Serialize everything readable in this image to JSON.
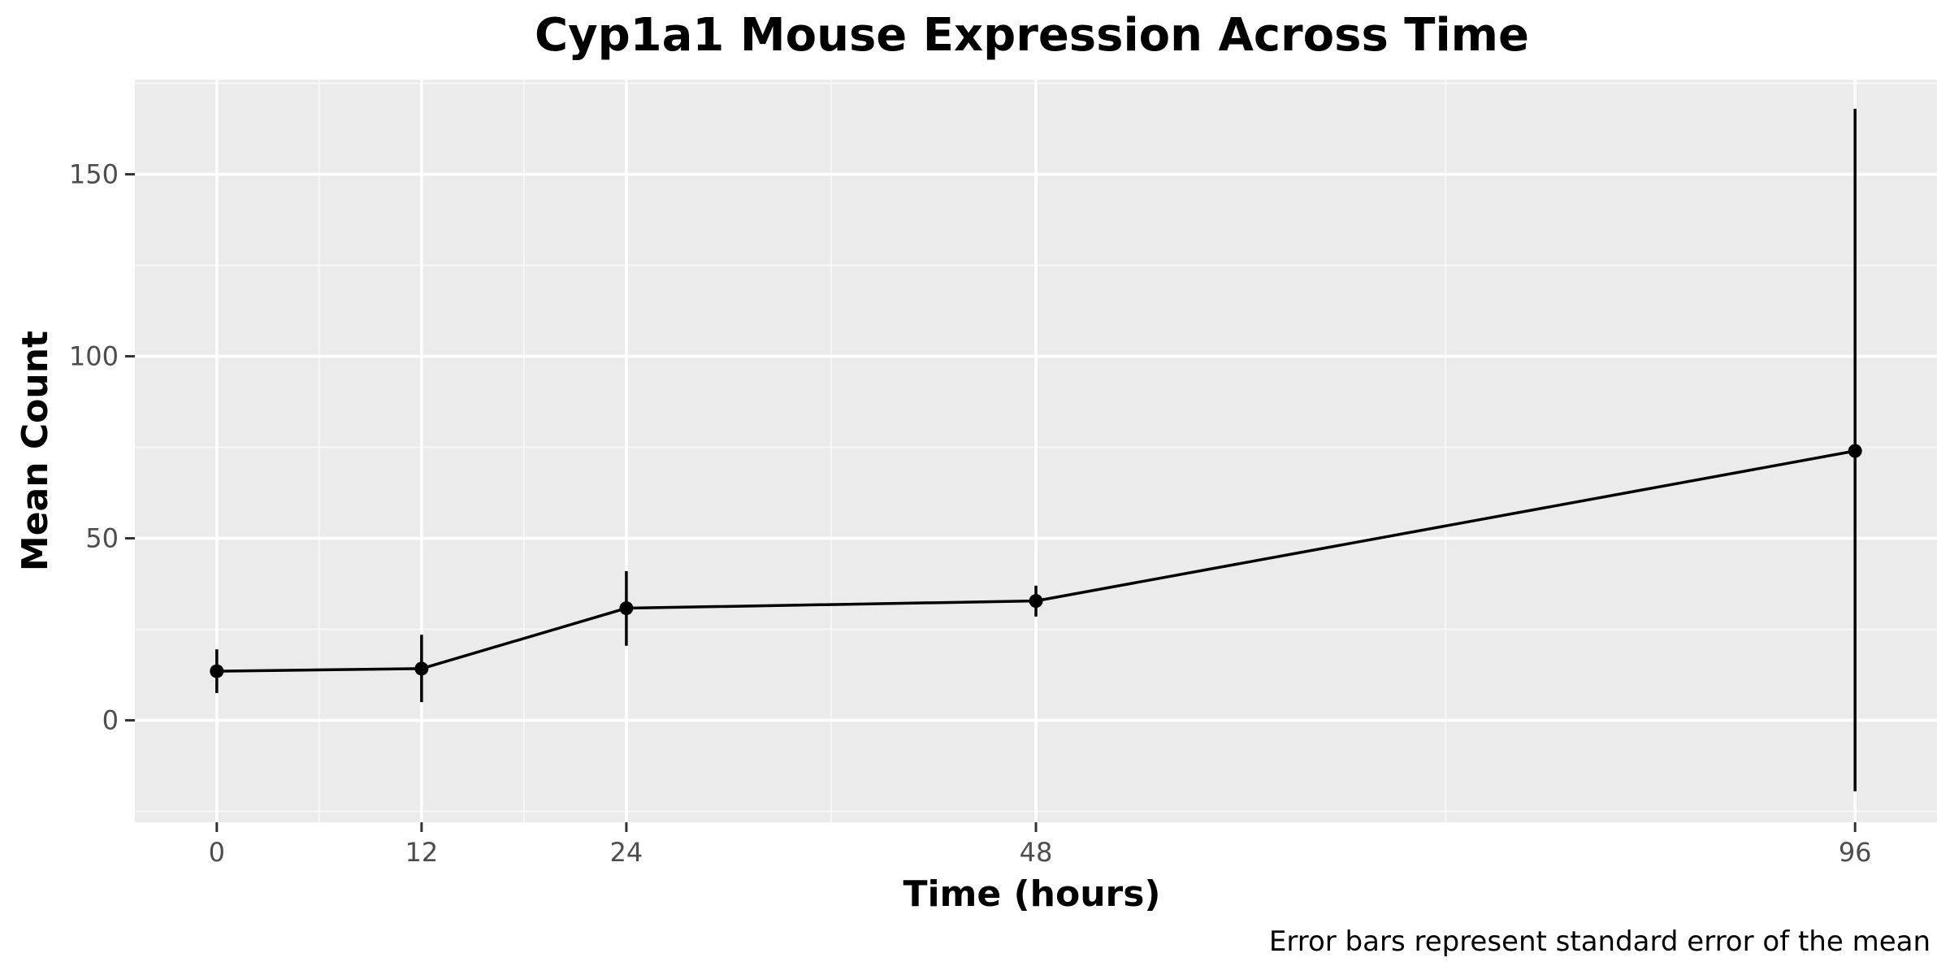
{
  "chart_data": {
    "type": "line",
    "title": "Cyp1a1 Mouse Expression Across Time",
    "xlabel": "Time (hours)",
    "ylabel": "Mean Count",
    "caption": "Error bars represent standard error of the mean",
    "x_ticks": [
      0,
      12,
      24,
      48,
      96
    ],
    "y_ticks": [
      0,
      50,
      100,
      150
    ],
    "xlim": [
      -4.8,
      100.8
    ],
    "ylim": [
      -28,
      176
    ],
    "grid": true,
    "legend": "none",
    "series": [
      {
        "points": [
          {
            "x": 0,
            "y": 13.5,
            "err_low": 7.5,
            "err_high": 19.5
          },
          {
            "x": 12,
            "y": 14.2,
            "err_low": 5.0,
            "err_high": 23.5
          },
          {
            "x": 24,
            "y": 30.8,
            "err_low": 20.5,
            "err_high": 41.0
          },
          {
            "x": 48,
            "y": 32.8,
            "err_low": 28.5,
            "err_high": 37.0
          },
          {
            "x": 96,
            "y": 74.0,
            "err_low": -19.5,
            "err_high": 168.0
          }
        ]
      }
    ],
    "colors": {
      "panel_background": "#ebebeb",
      "grid_major": "#ffffff",
      "grid_minor": "#f7f7f7",
      "line": "#000000",
      "point": "#000000",
      "tick_label": "#4d4d4d",
      "tick_mark": "#333333"
    }
  }
}
